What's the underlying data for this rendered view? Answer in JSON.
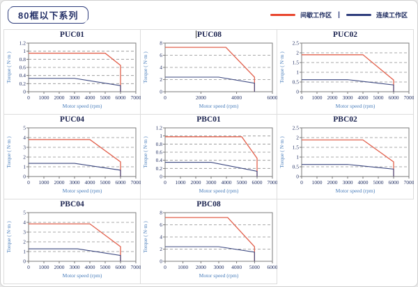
{
  "page": {
    "header_title": "80框以下系列",
    "legend": [
      {
        "label": "间歇工作区",
        "color": "#e8432b"
      },
      {
        "label": "连续工作区",
        "color": "#2b3a7a"
      }
    ],
    "legend_separator": "|"
  },
  "series_colors": [
    "#e2604c",
    "#39457e"
  ],
  "chart_data": [
    {
      "type": "line",
      "title": "PUC01",
      "xlabel": "Motor speed (rpm)",
      "ylabel": "Torque ( N·m )",
      "xlim": [
        0,
        7000
      ],
      "xstep": 1000,
      "ylim": [
        0,
        1.2
      ],
      "ystep": 0.2,
      "grid": "dashed-horizontal",
      "series": [
        {
          "name": "间歇工作区",
          "points": [
            [
              0,
              0.95
            ],
            [
              5000,
              0.95
            ],
            [
              6000,
              0.65
            ],
            [
              6000,
              0
            ]
          ]
        },
        {
          "name": "连续工作区",
          "points": [
            [
              0,
              0.33
            ],
            [
              3000,
              0.33
            ],
            [
              6000,
              0.15
            ],
            [
              6000,
              0
            ]
          ]
        }
      ]
    },
    {
      "type": "line",
      "title": "PUC08",
      "caret": true,
      "xlabel": "Motor speed (rpm)",
      "ylabel": "Torque ( N·m )",
      "xlim": [
        0,
        6000
      ],
      "xstep": 2000,
      "ylim": [
        0,
        8
      ],
      "ystep": 2,
      "grid": "dashed-horizontal",
      "series": [
        {
          "name": "间歇工作区",
          "points": [
            [
              0,
              7.3
            ],
            [
              3400,
              7.3
            ],
            [
              5000,
              2.4
            ],
            [
              5000,
              0
            ]
          ]
        },
        {
          "name": "连续工作区",
          "points": [
            [
              0,
              2.4
            ],
            [
              3000,
              2.4
            ],
            [
              5000,
              1.4
            ],
            [
              5000,
              0
            ]
          ]
        }
      ]
    },
    {
      "type": "line",
      "title": "PUC02",
      "xlabel": "Motor speed (rpm)",
      "ylabel": "Torque ( N·m )",
      "xlim": [
        0,
        7000
      ],
      "xstep": 1000,
      "ylim": [
        0,
        2.5
      ],
      "ystep": 0.5,
      "grid": "dashed-horizontal",
      "series": [
        {
          "name": "间歇工作区",
          "points": [
            [
              0,
              1.9
            ],
            [
              4000,
              1.9
            ],
            [
              6000,
              0.6
            ],
            [
              6000,
              0
            ]
          ]
        },
        {
          "name": "连续工作区",
          "points": [
            [
              0,
              0.62
            ],
            [
              3000,
              0.62
            ],
            [
              6000,
              0.35
            ],
            [
              6000,
              0
            ]
          ]
        }
      ]
    },
    {
      "type": "line",
      "title": "PUC04",
      "xlabel": "Motor speed (rpm)",
      "ylabel": "Torque ( N·m )",
      "xlim": [
        0,
        7000
      ],
      "xstep": 1000,
      "ylim": [
        0,
        5
      ],
      "ystep": 1,
      "grid": "dashed-horizontal",
      "series": [
        {
          "name": "间歇工作区",
          "points": [
            [
              0,
              3.8
            ],
            [
              4000,
              3.8
            ],
            [
              6000,
              1.5
            ],
            [
              6000,
              0
            ]
          ]
        },
        {
          "name": "连续工作区",
          "points": [
            [
              0,
              1.35
            ],
            [
              3000,
              1.35
            ],
            [
              6000,
              0.65
            ],
            [
              6000,
              0
            ]
          ]
        }
      ]
    },
    {
      "type": "line",
      "title": "PBC01",
      "xlabel": "Motor speed (rpm)",
      "ylabel": "Torque ( N·m )",
      "xlim": [
        0,
        7000
      ],
      "xstep": 1000,
      "ylim": [
        0,
        1.2
      ],
      "ystep": 0.2,
      "grid": "dashed-horizontal",
      "series": [
        {
          "name": "间歇工作区",
          "points": [
            [
              0,
              0.98
            ],
            [
              5000,
              0.98
            ],
            [
              6000,
              0.45
            ],
            [
              6000,
              0
            ]
          ]
        },
        {
          "name": "连续工作区",
          "points": [
            [
              0,
              0.35
            ],
            [
              3000,
              0.35
            ],
            [
              6000,
              0.13
            ],
            [
              6000,
              0
            ]
          ]
        }
      ]
    },
    {
      "type": "line",
      "title": "PBC02",
      "xlabel": "Motor speed (rpm)",
      "ylabel": "Torque ( N·m )",
      "xlim": [
        0,
        7000
      ],
      "xstep": 1000,
      "ylim": [
        0,
        2.5
      ],
      "ystep": 0.5,
      "grid": "dashed-horizontal",
      "series": [
        {
          "name": "间歇工作区",
          "points": [
            [
              0,
              1.88
            ],
            [
              4000,
              1.88
            ],
            [
              6000,
              0.75
            ],
            [
              6000,
              0
            ]
          ]
        },
        {
          "name": "连续工作区",
          "points": [
            [
              0,
              0.62
            ],
            [
              3000,
              0.62
            ],
            [
              6000,
              0.38
            ],
            [
              6000,
              0
            ]
          ]
        }
      ]
    },
    {
      "type": "line",
      "title": "PBC04",
      "xlabel": "Motor speed (rpm)",
      "ylabel": "Torque ( N·m )",
      "xlim": [
        0,
        7000
      ],
      "xstep": 1000,
      "ylim": [
        0,
        5
      ],
      "ystep": 1,
      "grid": "dashed-horizontal",
      "series": [
        {
          "name": "间歇工作区",
          "points": [
            [
              0,
              3.85
            ],
            [
              4000,
              3.85
            ],
            [
              6000,
              1.5
            ],
            [
              6000,
              0
            ]
          ]
        },
        {
          "name": "连续工作区",
          "points": [
            [
              0,
              1.28
            ],
            [
              3200,
              1.28
            ],
            [
              6000,
              0.6
            ],
            [
              6000,
              0
            ]
          ]
        }
      ]
    },
    {
      "type": "line",
      "title": "PBC08",
      "xlabel": "Motor speed (rpm)",
      "ylabel": "Torque ( N·m )",
      "xlim": [
        0,
        6000
      ],
      "xstep": 1000,
      "ylim": [
        0,
        8
      ],
      "ystep": 2,
      "grid": "dashed-horizontal",
      "series": [
        {
          "name": "间歇工作区",
          "points": [
            [
              0,
              7.2
            ],
            [
              3500,
              7.2
            ],
            [
              5000,
              2.4
            ],
            [
              5000,
              0
            ]
          ]
        },
        {
          "name": "连续工作区",
          "points": [
            [
              0,
              2.4
            ],
            [
              3000,
              2.4
            ],
            [
              5000,
              1.5
            ],
            [
              5000,
              0
            ]
          ]
        }
      ]
    }
  ]
}
